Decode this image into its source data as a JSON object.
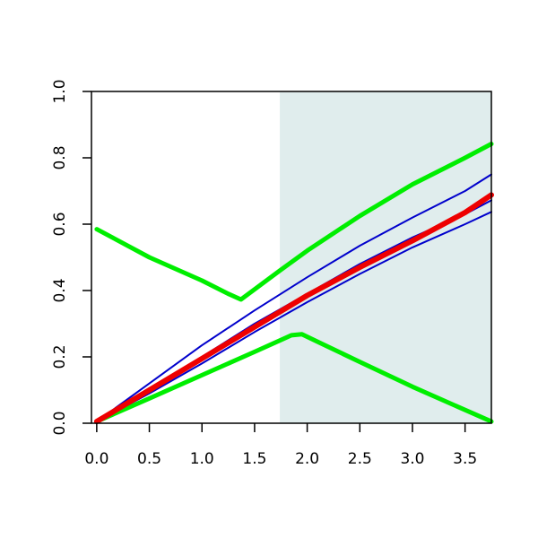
{
  "chart_data": {
    "type": "line",
    "title": "",
    "xlabel": "",
    "ylabel": "",
    "xlim": [
      -0.05,
      3.75
    ],
    "ylim": [
      0.0,
      1.0
    ],
    "x_ticks": [
      "0.0",
      "0.5",
      "1.0",
      "1.5",
      "2.0",
      "2.5",
      "3.0",
      "3.5"
    ],
    "y_ticks": [
      "0.0",
      "0.2",
      "0.4",
      "0.6",
      "0.8",
      "1.0"
    ],
    "grid": false,
    "shaded_region": {
      "x_start": 1.74,
      "x_end": 3.75,
      "color": "#e0eded"
    },
    "series": [
      {
        "color": "#00ee00",
        "width": 5,
        "points": [
          [
            0.0,
            0.585
          ],
          [
            0.5,
            0.5
          ],
          [
            1.0,
            0.43
          ],
          [
            1.25,
            0.39
          ],
          [
            1.37,
            0.373
          ],
          [
            1.74,
            0.46
          ],
          [
            2.0,
            0.52
          ],
          [
            2.5,
            0.625
          ],
          [
            3.0,
            0.72
          ],
          [
            3.5,
            0.8
          ],
          [
            3.75,
            0.842
          ]
        ]
      },
      {
        "color": "#00ee00",
        "width": 5,
        "points": [
          [
            0.0,
            0.005
          ],
          [
            0.5,
            0.075
          ],
          [
            1.0,
            0.145
          ],
          [
            1.5,
            0.215
          ],
          [
            1.85,
            0.265
          ],
          [
            1.95,
            0.268
          ],
          [
            2.5,
            0.185
          ],
          [
            3.0,
            0.11
          ],
          [
            3.5,
            0.04
          ],
          [
            3.75,
            0.005
          ]
        ]
      },
      {
        "color": "#0000cc",
        "width": 2,
        "points": [
          [
            0.0,
            0.005
          ],
          [
            0.5,
            0.12
          ],
          [
            1.0,
            0.235
          ],
          [
            1.5,
            0.34
          ],
          [
            2.0,
            0.44
          ],
          [
            2.5,
            0.535
          ],
          [
            3.0,
            0.62
          ],
          [
            3.5,
            0.7
          ],
          [
            3.75,
            0.75
          ]
        ]
      },
      {
        "color": "#0000cc",
        "width": 2,
        "points": [
          [
            0.0,
            0.005
          ],
          [
            0.5,
            0.1
          ],
          [
            1.0,
            0.2
          ],
          [
            1.5,
            0.3
          ],
          [
            2.0,
            0.39
          ],
          [
            2.5,
            0.48
          ],
          [
            3.0,
            0.56
          ],
          [
            3.5,
            0.63
          ],
          [
            3.75,
            0.672
          ]
        ]
      },
      {
        "color": "#0000cc",
        "width": 2,
        "points": [
          [
            0.0,
            0.005
          ],
          [
            0.5,
            0.09
          ],
          [
            1.0,
            0.18
          ],
          [
            1.5,
            0.275
          ],
          [
            2.0,
            0.365
          ],
          [
            2.5,
            0.45
          ],
          [
            3.0,
            0.53
          ],
          [
            3.5,
            0.6
          ],
          [
            3.75,
            0.637
          ]
        ]
      },
      {
        "color": "#ee0000",
        "width": 6,
        "points": [
          [
            0.0,
            0.005
          ],
          [
            0.5,
            0.1
          ],
          [
            1.0,
            0.195
          ],
          [
            1.5,
            0.29
          ],
          [
            2.0,
            0.385
          ],
          [
            2.5,
            0.47
          ],
          [
            3.0,
            0.55
          ],
          [
            3.5,
            0.635
          ],
          [
            3.75,
            0.688
          ]
        ]
      }
    ]
  }
}
